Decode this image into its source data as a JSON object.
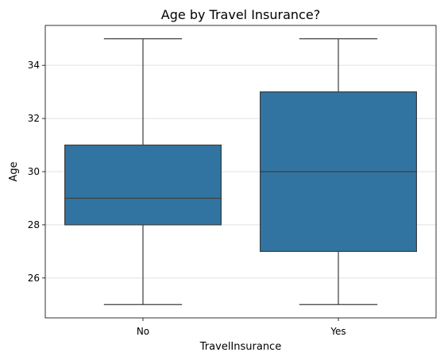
{
  "chart_data": {
    "type": "box",
    "title": "Age by Travel Insurance?",
    "xlabel": "TravelInsurance",
    "ylabel": "Age",
    "categories": [
      "No",
      "Yes"
    ],
    "boxes": [
      {
        "category": "No",
        "whisker_low": 25,
        "q1": 28,
        "median": 29,
        "q3": 31,
        "whisker_high": 35
      },
      {
        "category": "Yes",
        "whisker_low": 25,
        "q1": 27,
        "median": 30,
        "q3": 33,
        "whisker_high": 35
      }
    ],
    "ylim": [
      24.5,
      35.5
    ],
    "yticks": [
      26,
      28,
      30,
      32,
      34
    ],
    "grid": {
      "y": true,
      "x": false
    },
    "colors": {
      "box_fill": "#3274a1",
      "line": "#3d3d3d",
      "grid": "#e0e0e0"
    }
  }
}
